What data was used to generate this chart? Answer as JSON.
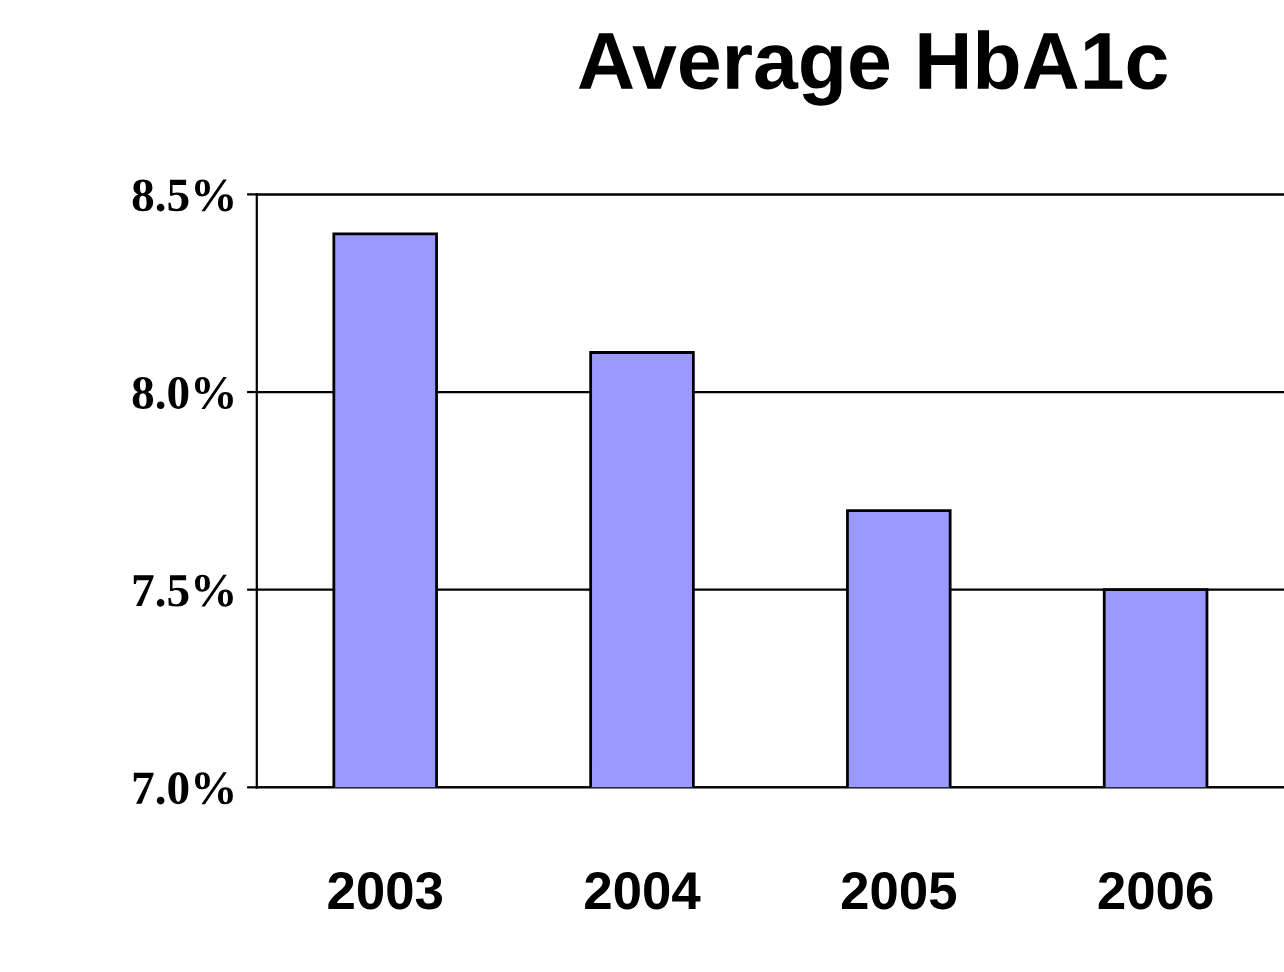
{
  "chart_data": {
    "type": "bar",
    "title": "Average HbA1c",
    "categories": [
      "2003",
      "2004",
      "2005",
      "2006"
    ],
    "values": [
      8.4,
      8.1,
      7.7,
      7.5
    ],
    "color": "#9999ff",
    "ylim": [
      7.0,
      8.5
    ],
    "yticks": [
      {
        "value": 7.0,
        "label": "7.0%"
      },
      {
        "value": 7.5,
        "label": "7.5%"
      },
      {
        "value": 8.0,
        "label": "8.0%"
      },
      {
        "value": 8.5,
        "label": "8.5%"
      }
    ],
    "grid": "y",
    "legend": false
  }
}
